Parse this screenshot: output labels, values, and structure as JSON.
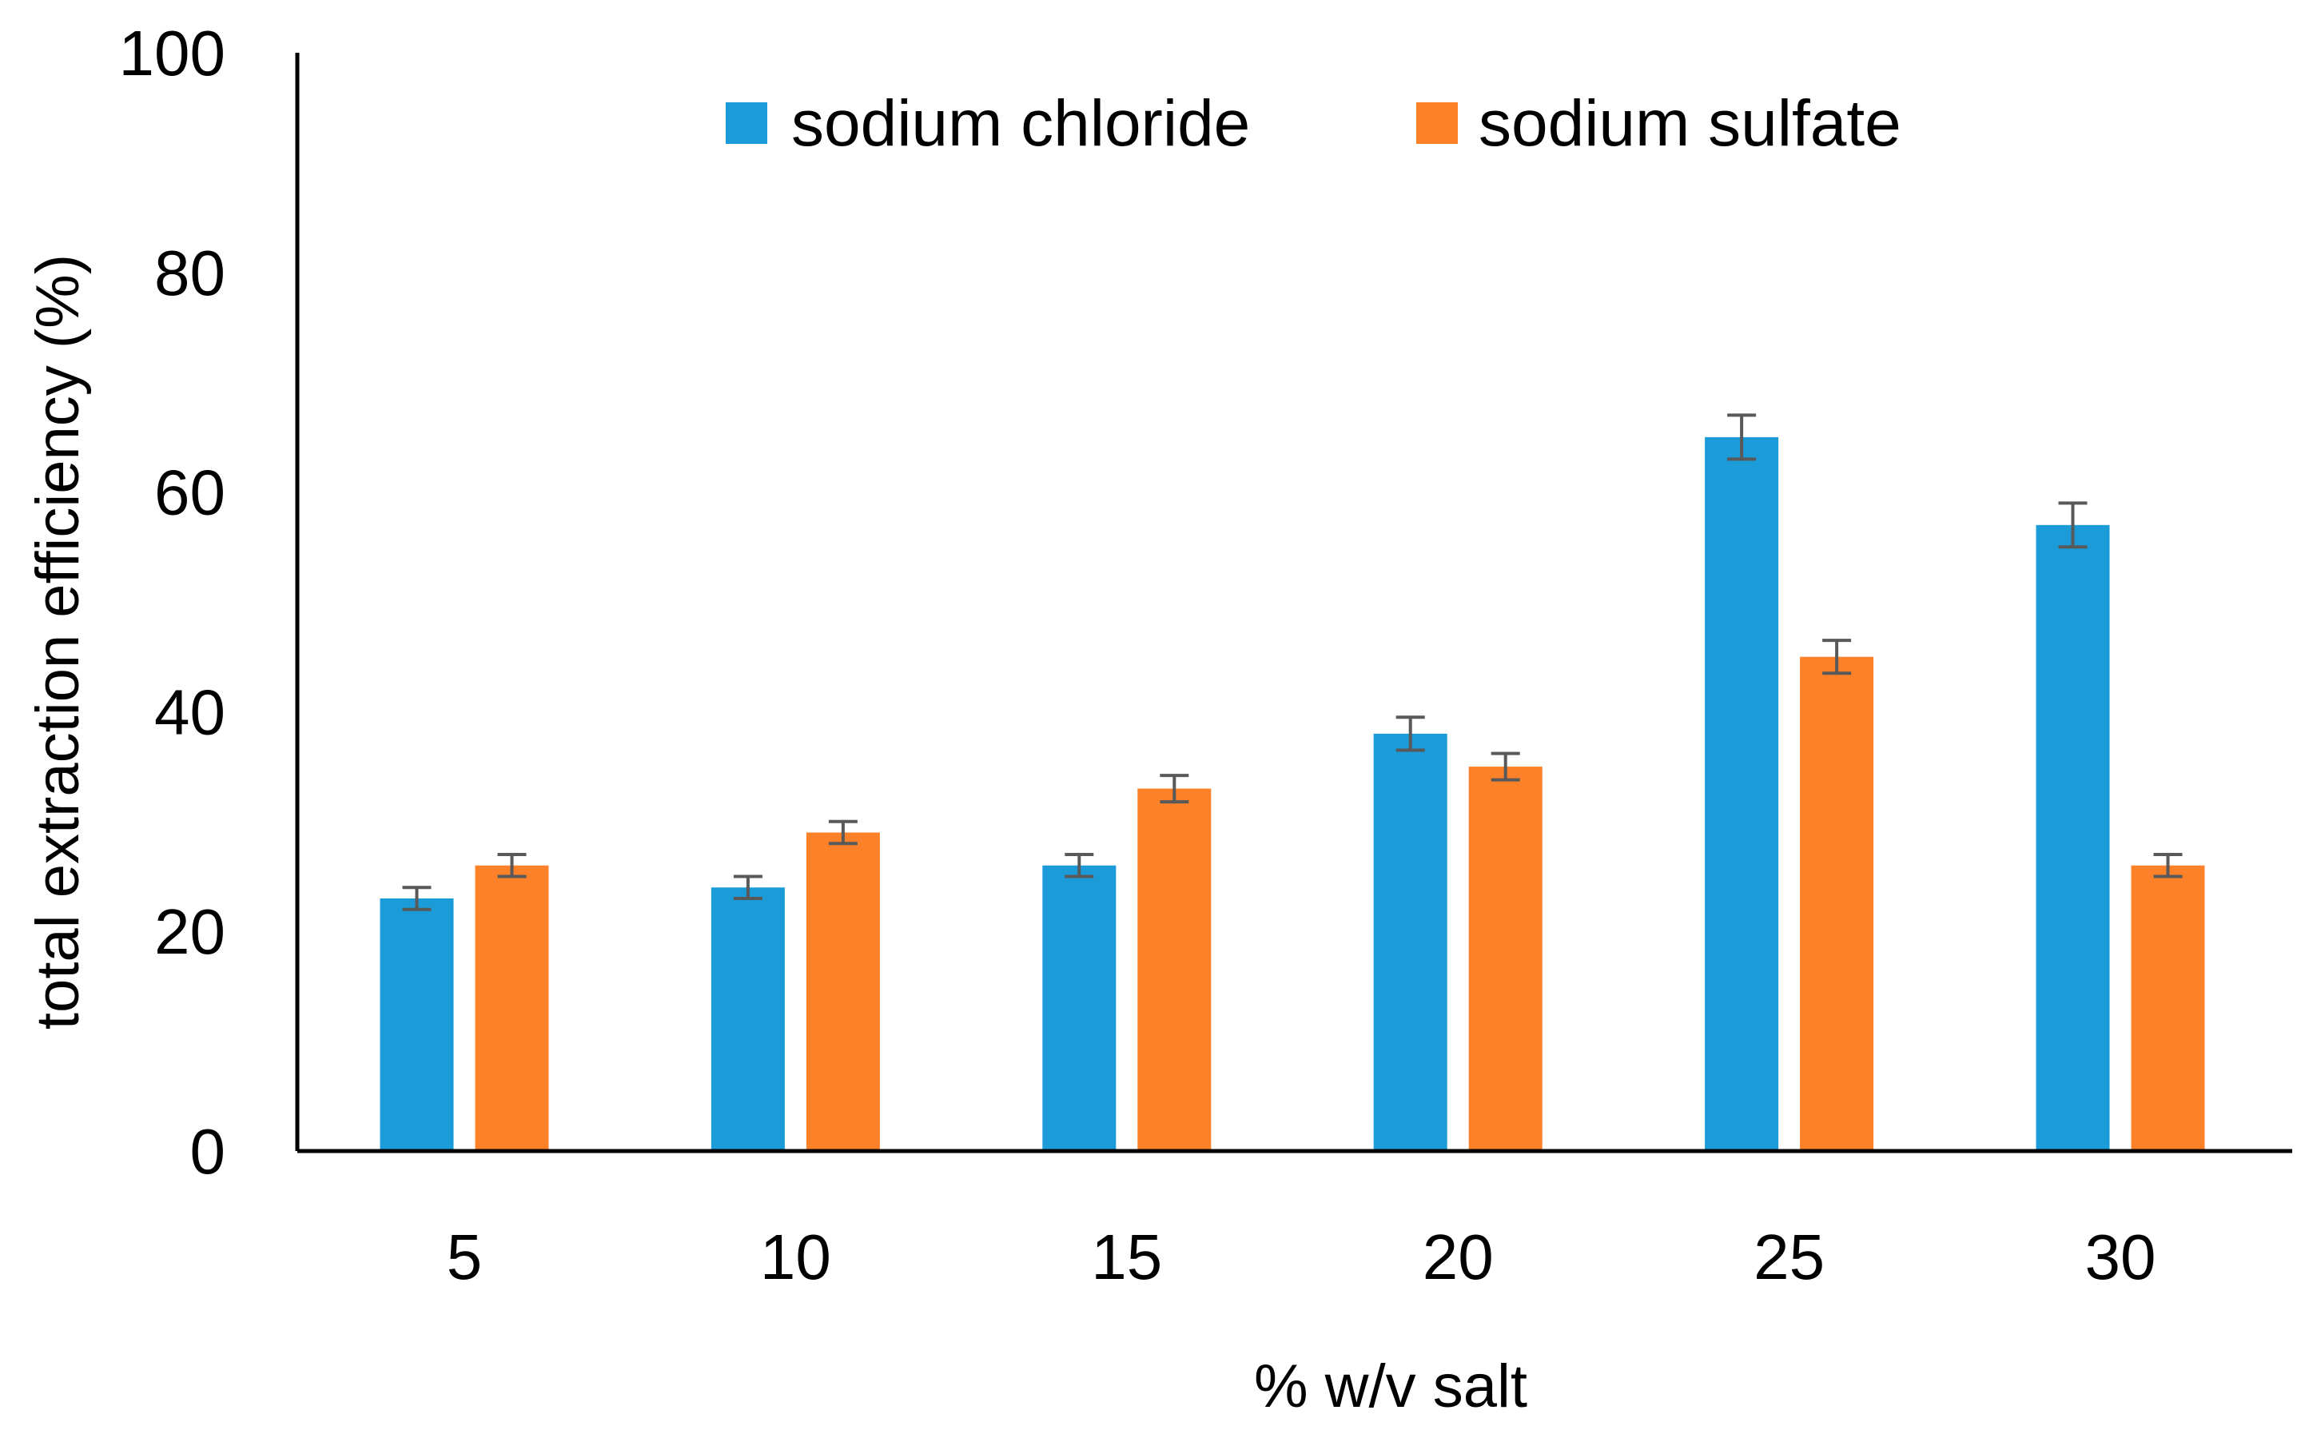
{
  "chart_data": {
    "type": "bar",
    "title": "",
    "xlabel": "% w/v salt",
    "ylabel": "total extraction efficiency (%)",
    "categories": [
      "5",
      "10",
      "15",
      "20",
      "25",
      "30"
    ],
    "series": [
      {
        "name": "sodium chloride",
        "color": "#1b9cd8",
        "values": [
          23,
          24,
          26,
          38,
          65,
          57
        ],
        "errors": [
          1,
          1,
          1,
          1.5,
          2,
          2
        ]
      },
      {
        "name": "sodium sulfate",
        "color": "#fd8128",
        "values": [
          26,
          29,
          33,
          35,
          45,
          26
        ],
        "errors": [
          1,
          1,
          1.2,
          1.2,
          1.5,
          1
        ]
      }
    ],
    "ylim": [
      0,
      100
    ],
    "yticks": [
      0,
      20,
      40,
      60,
      80,
      100
    ],
    "grid": false,
    "legend_position": "top-center",
    "error_bar_color": "#595959"
  }
}
